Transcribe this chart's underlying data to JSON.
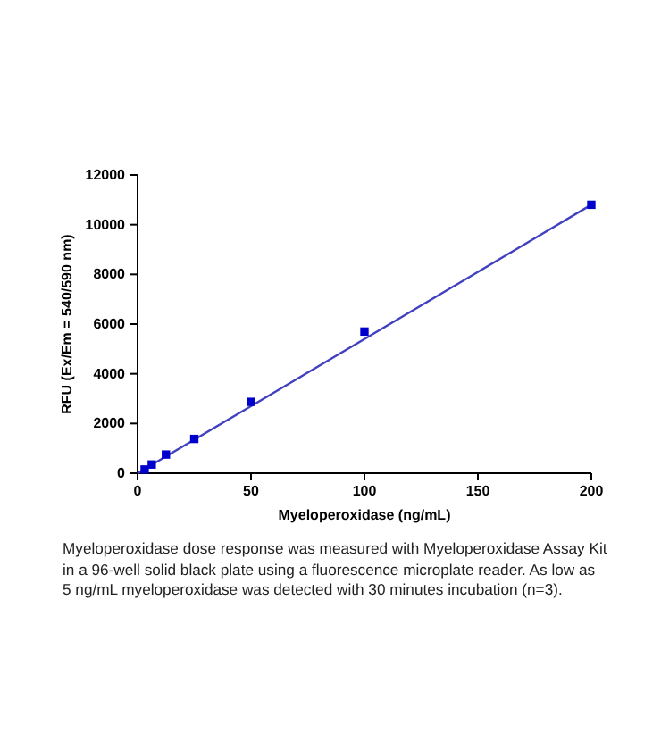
{
  "chart_data": {
    "type": "scatter",
    "xlabel": "Myeloperoxidase (ng/mL)",
    "ylabel": "RFU (Ex/Em = 540/590 nm)",
    "x": [
      3.125,
      6.25,
      12.5,
      25,
      50,
      100,
      200
    ],
    "series": [
      {
        "color": "#0000cc",
        "values": [
          150,
          350,
          750,
          1380,
          2870,
          5700,
          10800
        ]
      },
      {
        "type": "line",
        "marker": "none",
        "color": "#4040c0",
        "x": [
          0,
          200
        ],
        "values": [
          0,
          10800
        ]
      }
    ],
    "marker": "square",
    "xlim": [
      0,
      200
    ],
    "xticks": [
      0,
      50,
      100,
      150,
      200
    ],
    "ylim": [
      0,
      12000
    ],
    "yticks": [
      0,
      2000,
      4000,
      6000,
      8000,
      10000,
      12000
    ],
    "grid": false,
    "annotations": [
      "Myeloperoxidase dose response was measured with Myeloperoxidase Assay Kit in a 96-well solid black plate using a fluorescence microplate reader. As low as 5 ng/mL myeloperoxidase was detected with 30 minutes incubation (n=3)."
    ]
  }
}
